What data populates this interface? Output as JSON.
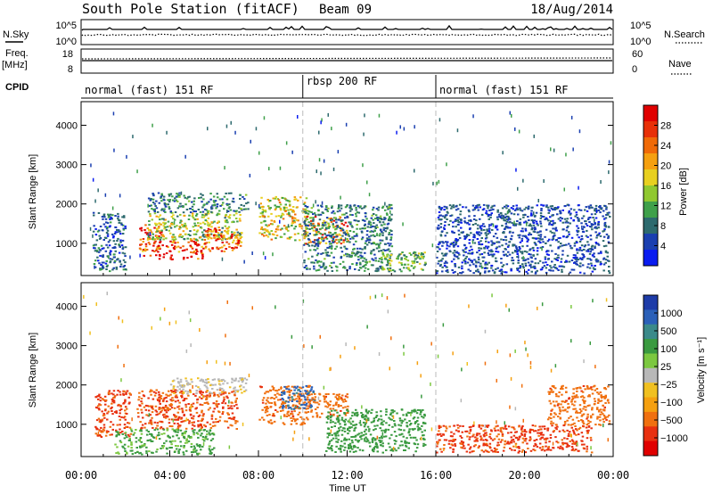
{
  "header": {
    "station": "South Pole Station (fitACF)",
    "beam": "Beam 09",
    "date": "18/Aug/2014"
  },
  "panels": {
    "nsky": {
      "label": "N.Sky",
      "ticks": [
        "10^5",
        "10^0"
      ],
      "right_label": "N.Search",
      "right_ticks": [
        "10^5",
        "10^0"
      ]
    },
    "freq": {
      "label_line1": "Freq.",
      "label_line2": "[MHz]",
      "ticks": [
        "18",
        "8"
      ],
      "right_label": "Nave",
      "right_ticks": [
        "60",
        "0"
      ]
    },
    "cpid": {
      "label": "CPID",
      "segments": [
        {
          "name": "normal (fast) 151 RF",
          "start": 0,
          "end": 10
        },
        {
          "name": "rbsp 200 RF",
          "start": 10,
          "end": 16
        },
        {
          "name": "normal (fast) 151 RF",
          "start": 16,
          "end": 24
        }
      ]
    }
  },
  "chart_data": [
    {
      "type": "heatmap",
      "title": "",
      "quantity": "Power",
      "xlabel": "Time UT",
      "ylabel": "Slant Range [km]",
      "x_ticks": [
        "00:00",
        "04:00",
        "08:00",
        "12:00",
        "16:00",
        "20:00",
        "00:00"
      ],
      "x_range_hours": [
        0,
        24
      ],
      "y_ticks": [
        1000,
        2000,
        3000,
        4000
      ],
      "y_range": [
        180,
        4600
      ],
      "colorbar": {
        "label": "Power [dB]",
        "ticks": [
          "4",
          "8",
          "12",
          "16",
          "20",
          "24",
          "28"
        ],
        "range": [
          0,
          30
        ],
        "colors": [
          "#0a1cf0",
          "#1a3fb0",
          "#2d6a6e",
          "#3fa04a",
          "#90c830",
          "#e8d020",
          "#f5a010",
          "#f06a08",
          "#e83008",
          "#e00000"
        ]
      },
      "regions": [
        {
          "t0": 0.5,
          "t1": 2.0,
          "r0": 300,
          "r1": 1800,
          "value": 6
        },
        {
          "t0": 2.6,
          "t1": 3.6,
          "r0": 700,
          "r1": 1500,
          "value": 26
        },
        {
          "t0": 3.4,
          "t1": 5.5,
          "r0": 600,
          "r1": 1100,
          "value": 28
        },
        {
          "t0": 3.0,
          "t1": 7.2,
          "r0": 1100,
          "r1": 1800,
          "value": 14
        },
        {
          "t0": 5.5,
          "t1": 7.2,
          "r0": 800,
          "r1": 1400,
          "value": 24
        },
        {
          "t0": 3.0,
          "t1": 7.5,
          "r0": 1800,
          "r1": 2300,
          "value": 8
        },
        {
          "t0": 8.0,
          "t1": 10.2,
          "r0": 1100,
          "r1": 2200,
          "value": 16
        },
        {
          "t0": 10.0,
          "t1": 12.0,
          "r0": 1000,
          "r1": 1700,
          "value": 22
        },
        {
          "t0": 10.0,
          "t1": 14.0,
          "r0": 300,
          "r1": 2000,
          "value": 8
        },
        {
          "t0": 13.5,
          "t1": 15.5,
          "r0": 300,
          "r1": 800,
          "value": 12
        },
        {
          "t0": 16.0,
          "t1": 23.8,
          "r0": 250,
          "r1": 2000,
          "value": 5
        }
      ],
      "markers_hours": [
        10,
        16
      ]
    },
    {
      "type": "heatmap",
      "title": "",
      "quantity": "Velocity",
      "xlabel": "Time UT",
      "ylabel": "Slant Range [km]",
      "x_ticks": [
        "00:00",
        "04:00",
        "08:00",
        "12:00",
        "16:00",
        "20:00",
        "00:00"
      ],
      "x_range_hours": [
        0,
        24
      ],
      "y_ticks": [
        1000,
        2000,
        3000,
        4000
      ],
      "y_range": [
        180,
        4600
      ],
      "colorbar": {
        "label": "Velocity [m s⁻¹]",
        "ticks": [
          "1000",
          "500",
          "100",
          "25",
          "−25",
          "−100",
          "−500",
          "−1000"
        ],
        "colors": [
          "#1e3ca8",
          "#2b60b8",
          "#3b8a8a",
          "#3a9a40",
          "#7cc840",
          "#b8b8b8",
          "#f0c020",
          "#f5a010",
          "#f07010",
          "#e83010",
          "#e00000"
        ]
      },
      "regions": [
        {
          "t0": 0.6,
          "t1": 2.2,
          "r0": 700,
          "r1": 1900,
          "value": -300
        },
        {
          "t0": 2.5,
          "t1": 7.0,
          "r0": 900,
          "r1": 1900,
          "value": -250
        },
        {
          "t0": 4.0,
          "t1": 7.5,
          "r0": 1800,
          "r1": 2200,
          "value": 30
        },
        {
          "t0": 1.5,
          "t1": 6.0,
          "r0": 250,
          "r1": 900,
          "value": 120
        },
        {
          "t0": 8.0,
          "t1": 10.3,
          "r0": 1000,
          "r1": 2000,
          "value": -200
        },
        {
          "t0": 9.0,
          "t1": 10.5,
          "r0": 1400,
          "r1": 2000,
          "value": 600
        },
        {
          "t0": 10.3,
          "t1": 12.0,
          "r0": 1200,
          "r1": 1800,
          "value": -200
        },
        {
          "t0": 11.0,
          "t1": 15.5,
          "r0": 300,
          "r1": 1400,
          "value": 150
        },
        {
          "t0": 16.0,
          "t1": 23.0,
          "r0": 300,
          "r1": 1000,
          "value": -300
        },
        {
          "t0": 21.0,
          "t1": 23.8,
          "r0": 1000,
          "r1": 2000,
          "value": -200
        }
      ],
      "markers_hours": [
        10,
        16
      ]
    }
  ]
}
